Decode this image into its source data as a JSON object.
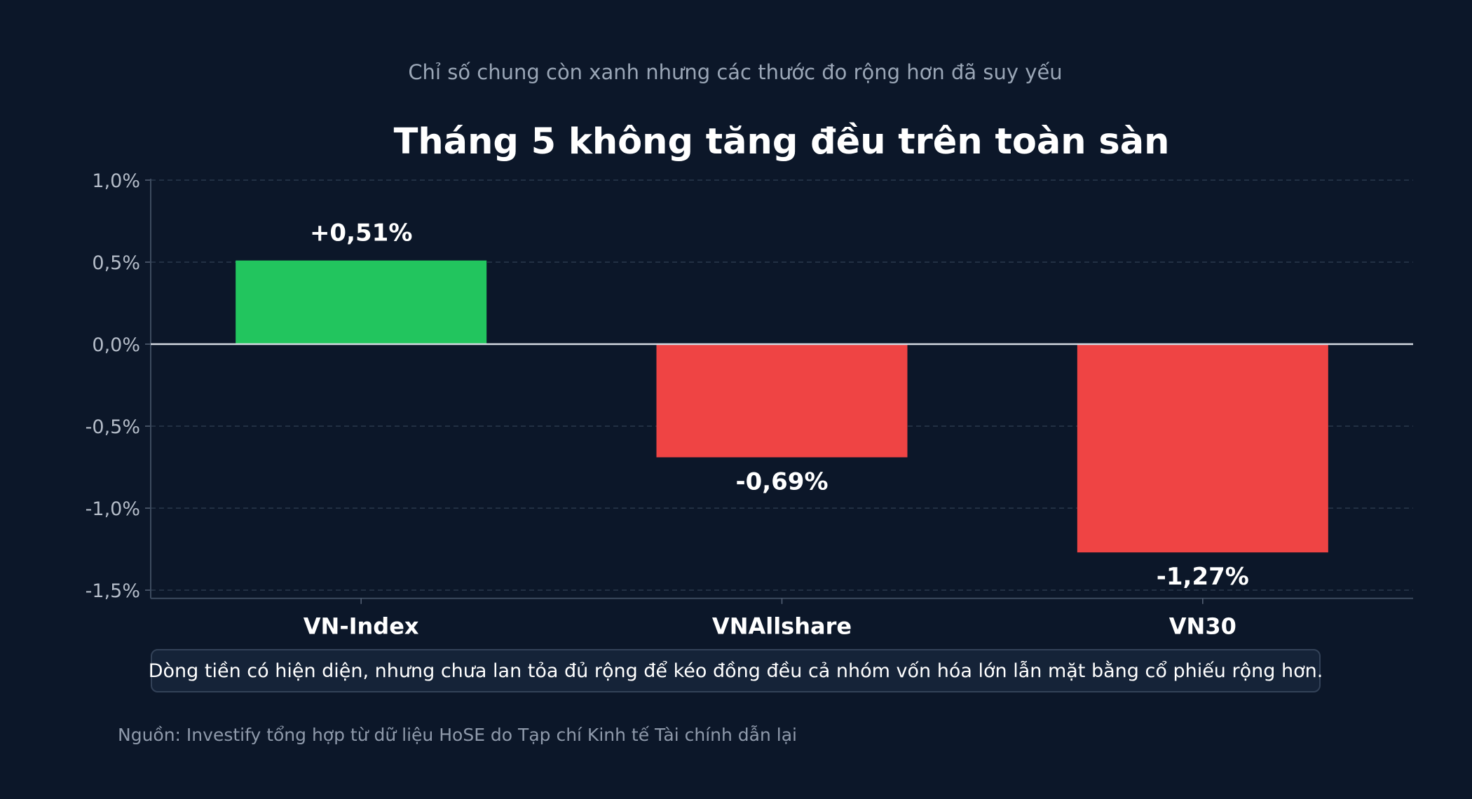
{
  "subtitle": "Chỉ số chung còn xanh nhưng các thước đo rộng hơn đã suy yếu",
  "note": "Dòng tiền có hiện diện, nhưng chưa lan tỏa đủ rộng để kéo đồng đều cả nhóm vốn hóa lớn lẫn mặt bằng cổ phiếu rộng hơn.",
  "source": "Nguồn: Investify tổng hợp từ dữ liệu HoSE do Tạp chí Kinh tế Tài chính dẫn lại",
  "colors": {
    "positive": "#22c55e",
    "negative": "#ef4444",
    "background": "#0c1729"
  },
  "chart_data": {
    "type": "bar",
    "title": "Tháng 5 không tăng đều trên toàn sàn",
    "xlabel": "",
    "ylabel": "",
    "categories": [
      "VN-Index",
      "VNAllshare",
      "VN30"
    ],
    "values": [
      0.51,
      -0.69,
      -1.27
    ],
    "data_labels": [
      "+0,51%",
      "-0,69%",
      "-1,27%"
    ],
    "ylim": [
      -1.55,
      1.0
    ],
    "yticks": [
      1.0,
      0.5,
      0.0,
      -0.5,
      -1.0,
      -1.5
    ],
    "ytick_labels": [
      "1,0%",
      "0,5%",
      "0,0%",
      "-0,5%",
      "-1,0%",
      "-1,5%"
    ],
    "grid": true
  }
}
